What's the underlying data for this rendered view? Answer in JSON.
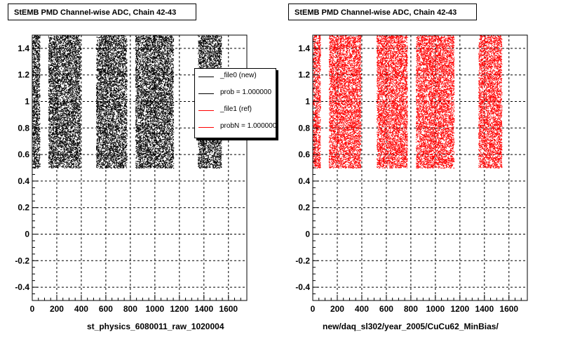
{
  "footer_text": "",
  "chart_data": [
    {
      "type": "scatter",
      "title": "StEMB PMD Channel-wise ADC, Chain 42-43",
      "xlabel": "st_physics_6080011_raw_1020004",
      "ylabel": "",
      "xlim": [
        0,
        1750
      ],
      "ylim": [
        -0.5,
        1.5
      ],
      "x_ticks": [
        0,
        200,
        400,
        600,
        800,
        1000,
        1200,
        1400,
        1600
      ],
      "y_ticks": [
        -0.4,
        -0.2,
        0,
        0.2,
        0.4,
        0.6,
        0.8,
        1,
        1.2,
        1.4
      ],
      "grid": true,
      "series_color": "#000000",
      "bands": [
        {
          "x_start": 0,
          "x_end": 60,
          "y_start": 0.5,
          "y_end": 1.5
        },
        {
          "x_start": 130,
          "x_end": 390,
          "y_start": 0.5,
          "y_end": 1.5
        },
        {
          "x_start": 520,
          "x_end": 770,
          "y_start": 0.5,
          "y_end": 1.5
        },
        {
          "x_start": 840,
          "x_end": 1150,
          "y_start": 0.5,
          "y_end": 1.5
        },
        {
          "x_start": 1350,
          "x_end": 1540,
          "y_start": 0.5,
          "y_end": 1.5
        }
      ],
      "legend": {
        "placement": "top-right",
        "entries": [
          {
            "label": "_file0 (new)",
            "color": "#000000"
          },
          {
            "label": "prob = 1.000000",
            "color": "#000000"
          },
          {
            "label": "_file1 (ref)",
            "color": "#ff0000"
          },
          {
            "label": "probN = 1.000000",
            "color": "#ff0000"
          }
        ]
      }
    },
    {
      "type": "scatter",
      "title": "StEMB PMD Channel-wise ADC, Chain 42-43",
      "xlabel": "new/daq_sl302/year_2005/CuCu62_MinBias/",
      "ylabel": "",
      "xlim": [
        0,
        1750
      ],
      "ylim": [
        -0.5,
        1.5
      ],
      "x_ticks": [
        0,
        200,
        400,
        600,
        800,
        1000,
        1200,
        1400,
        1600
      ],
      "y_ticks": [
        -0.4,
        -0.2,
        0,
        0.2,
        0.4,
        0.6,
        0.8,
        1,
        1.2,
        1.4
      ],
      "grid": true,
      "series_color": "#ff0000",
      "bands": [
        {
          "x_start": 0,
          "x_end": 60,
          "y_start": 0.5,
          "y_end": 1.5
        },
        {
          "x_start": 130,
          "x_end": 390,
          "y_start": 0.5,
          "y_end": 1.5
        },
        {
          "x_start": 520,
          "x_end": 770,
          "y_start": 0.5,
          "y_end": 1.5
        },
        {
          "x_start": 840,
          "x_end": 1150,
          "y_start": 0.5,
          "y_end": 1.5
        },
        {
          "x_start": 1350,
          "x_end": 1540,
          "y_start": 0.5,
          "y_end": 1.5
        }
      ]
    }
  ]
}
